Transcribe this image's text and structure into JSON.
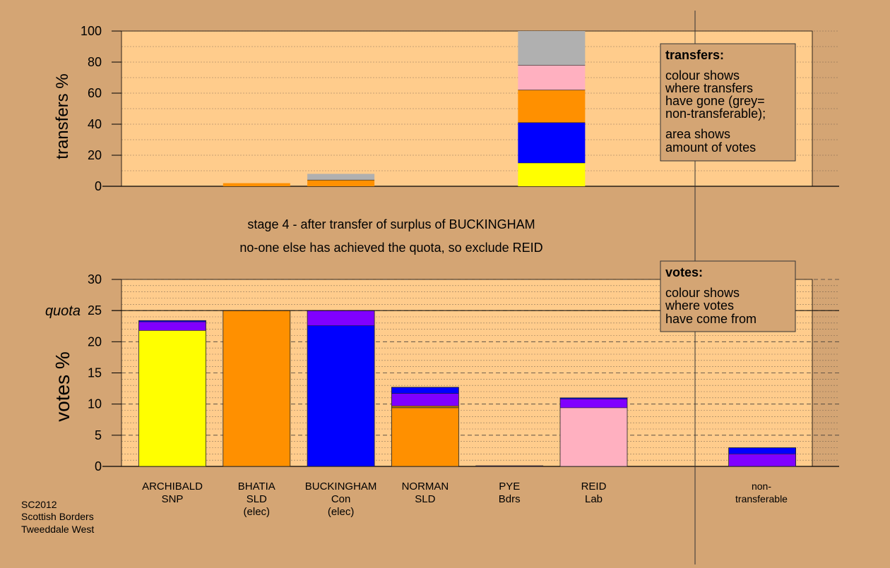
{
  "colors": {
    "background": "#d4a574",
    "plot_area": "#ffcc8c",
    "panel_fill": "#d4a574",
    "yellow": "#ffff00",
    "orange": "#ff9000",
    "blue": "#0000ff",
    "purple": "#8000ff",
    "pink": "#ffb0c0",
    "grey": "#b0b0b0"
  },
  "stage_text": {
    "line1": "stage 4 - after transfer of surplus of BUCKINGHAM",
    "line2": "no-one else has achieved the quota, so exclude REID"
  },
  "footer": {
    "line1": "SC2012",
    "line2": "Scottish Borders",
    "line3": "Tweeddale West"
  },
  "transfers_legend": {
    "title": "transfers:",
    "lines": [
      "colour shows",
      "where transfers",
      "have gone (grey=",
      "non-transferable);",
      "area shows",
      "amount of votes"
    ]
  },
  "votes_legend": {
    "title": "votes:",
    "lines": [
      "colour shows",
      "where votes",
      "have come from"
    ]
  },
  "categories": [
    {
      "name": "ARCHIBALD",
      "party": "SNP",
      "status": ""
    },
    {
      "name": "BHATIA",
      "party": "SLD",
      "status": "(elec)"
    },
    {
      "name": "BUCKINGHAM",
      "party": "Con",
      "status": "(elec)"
    },
    {
      "name": "NORMAN",
      "party": "SLD",
      "status": ""
    },
    {
      "name": "PYE",
      "party": "Bdrs",
      "status": ""
    },
    {
      "name": "REID",
      "party": "Lab",
      "status": ""
    },
    {
      "name": "",
      "party": "",
      "status": ""
    },
    {
      "name": "non-",
      "party": "transferable",
      "status": ""
    }
  ],
  "chart_data": [
    {
      "type": "bar",
      "ylabel": "transfers %",
      "ylim": [
        0,
        100
      ],
      "yticks": [
        "0",
        "20",
        "40",
        "60",
        "80",
        "100"
      ],
      "bars": [
        {
          "index": 1,
          "segments": [
            {
              "color": "orange",
              "value": 2
            }
          ]
        },
        {
          "index": 2,
          "segments": [
            {
              "color": "orange",
              "value": 4
            },
            {
              "color": "grey",
              "value": 4
            }
          ]
        },
        {
          "index": 4.5,
          "segments": [
            {
              "color": "yellow",
              "value": 15
            },
            {
              "color": "blue",
              "value": 26
            },
            {
              "color": "orange",
              "value": 21
            },
            {
              "color": "pink",
              "value": 16
            },
            {
              "color": "grey",
              "value": 22
            }
          ]
        }
      ]
    },
    {
      "type": "bar",
      "ylabel": "votes %",
      "ylim": [
        0,
        30
      ],
      "yticks": [
        "0",
        "5",
        "10",
        "15",
        "20",
        "25",
        "30"
      ],
      "quota": 25,
      "quota_label": "quota",
      "bars": [
        {
          "index": 0,
          "segments": [
            {
              "color": "yellow",
              "value": 21.8
            },
            {
              "color": "purple",
              "value": 1.4
            },
            {
              "color": "blue",
              "value": 0.2
            }
          ]
        },
        {
          "index": 1,
          "segments": [
            {
              "color": "orange",
              "value": 25.0
            }
          ]
        },
        {
          "index": 2,
          "segments": [
            {
              "color": "blue",
              "value": 22.6
            },
            {
              "color": "purple",
              "value": 2.4
            }
          ]
        },
        {
          "index": 3,
          "segments": [
            {
              "color": "orange",
              "value": 9.4
            },
            {
              "color": "yellow",
              "value": 0.1
            },
            {
              "color": "orange",
              "value": 0.2
            },
            {
              "color": "purple",
              "value": 2.0
            },
            {
              "color": "blue",
              "value": 1.0
            }
          ]
        },
        {
          "index": 4,
          "segments": [
            {
              "color": "purple",
              "value": 0.1
            }
          ]
        },
        {
          "index": 5,
          "segments": [
            {
              "color": "pink",
              "value": 9.4
            },
            {
              "color": "purple",
              "value": 1.4
            },
            {
              "color": "blue",
              "value": 0.2
            }
          ]
        },
        {
          "index": 7,
          "segments": [
            {
              "color": "purple",
              "value": 2.0
            },
            {
              "color": "blue",
              "value": 1.0
            }
          ]
        }
      ]
    }
  ]
}
